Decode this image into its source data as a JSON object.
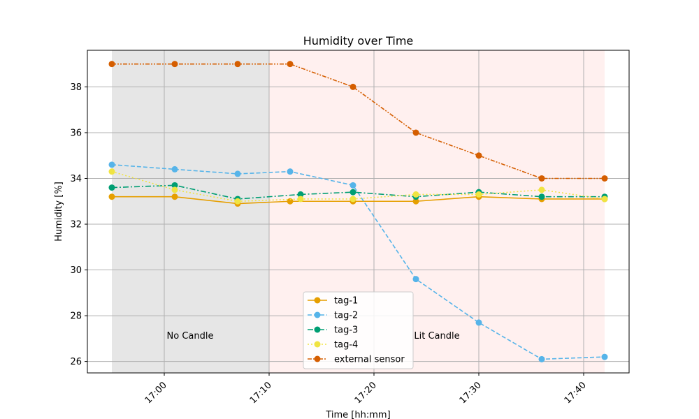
{
  "chart_data": {
    "type": "line",
    "title": "Humidity over Time",
    "xlabel": "Time [hh:mm]",
    "ylabel": "Humidity [%]",
    "xlim_minutes": [
      16.3,
      17.45
    ],
    "x_ticks": [
      "17:00",
      "17:10",
      "17:20",
      "17:30",
      "17:40"
    ],
    "ylim": [
      25.5,
      39.6
    ],
    "y_ticks": [
      26,
      28,
      30,
      32,
      34,
      36,
      38
    ],
    "grid": true,
    "legend_position": "lower-center",
    "regions": [
      {
        "label": "No Candle",
        "from": "16:55",
        "to": "17:10",
        "color": "#e6e6e6"
      },
      {
        "label": "Lit Candle",
        "from": "17:10",
        "to": "17:42",
        "color": "#fff0ef"
      }
    ],
    "series": [
      {
        "name": "tag-1",
        "color": "#e69f00",
        "dash": "solid",
        "x": [
          "16:55",
          "17:01",
          "17:07",
          "17:12",
          "17:18",
          "17:24",
          "17:30",
          "17:36",
          "17:42"
        ],
        "values": [
          33.2,
          33.2,
          32.9,
          33.0,
          33.0,
          33.0,
          33.2,
          33.1,
          33.1
        ]
      },
      {
        "name": "tag-2",
        "color": "#56b4e9",
        "dash": "dashed",
        "x": [
          "16:55",
          "17:01",
          "17:07",
          "17:12",
          "17:18",
          "17:24",
          "17:30",
          "17:36",
          "17:42"
        ],
        "values": [
          34.6,
          34.4,
          34.2,
          34.3,
          33.7,
          29.6,
          27.7,
          26.1,
          26.2
        ]
      },
      {
        "name": "tag-3",
        "color": "#009e73",
        "dash": "dashdot",
        "x": [
          "16:55",
          "17:01",
          "17:07",
          "17:13",
          "17:18",
          "17:24",
          "17:30",
          "17:36",
          "17:42"
        ],
        "values": [
          33.6,
          33.7,
          33.1,
          33.3,
          33.4,
          33.2,
          33.4,
          33.2,
          33.2
        ]
      },
      {
        "name": "tag-4",
        "color": "#f0e442",
        "dash": "dotted",
        "x": [
          "16:55",
          "17:01",
          "17:07",
          "17:13",
          "17:18",
          "17:24",
          "17:30",
          "17:36",
          "17:42"
        ],
        "values": [
          34.3,
          33.5,
          33.0,
          33.1,
          33.1,
          33.3,
          33.3,
          33.5,
          33.1
        ]
      },
      {
        "name": "external sensor",
        "color": "#d55e00",
        "dash": "dashdotdot",
        "x": [
          "16:55",
          "17:01",
          "17:07",
          "17:12",
          "17:18",
          "17:24",
          "17:30",
          "17:36",
          "17:42"
        ],
        "values": [
          39.0,
          39.0,
          39.0,
          39.0,
          38.0,
          36.0,
          35.0,
          34.0,
          34.0
        ]
      }
    ]
  }
}
